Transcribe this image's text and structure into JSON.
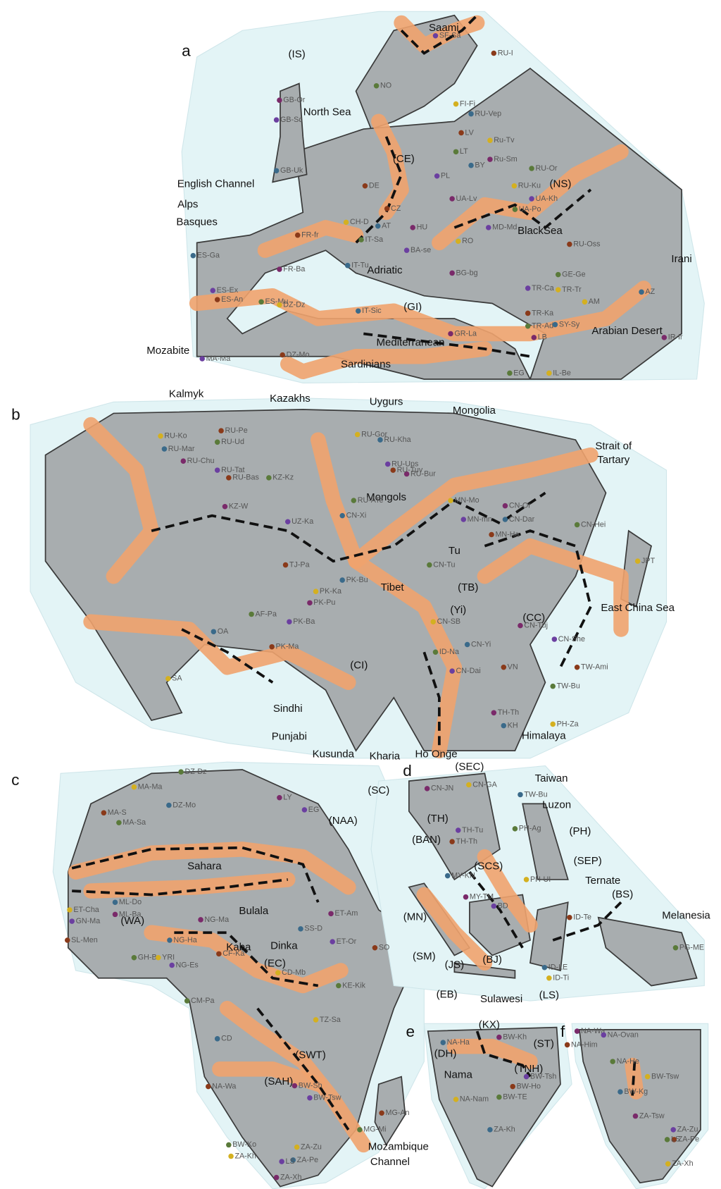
{
  "panels": [
    {
      "letter": "a",
      "regions": [
        "(IS)",
        "Saami",
        "North Sea",
        "(CE)",
        "English Channel",
        "Alps",
        "Basques",
        "(NS)",
        "BlackSea",
        "Irani",
        "Adriatic",
        "(GI)",
        "Arabian Desert",
        "Mozabite",
        "Mediterranean",
        "Sardinians"
      ],
      "samples": [
        "SF-Sa",
        "RU-I",
        "NO",
        "FI-Fi",
        "RU-Vep",
        "GB-Or",
        "GB-Sc",
        "LV",
        "LT",
        "Ru-Tv",
        "BY",
        "Ru-Sm",
        "PL",
        "DE",
        "RU-Or",
        "RU-Ku",
        "GB-Uk",
        "UA-Lv",
        "UA-Kh",
        "CZ",
        "UA-Po",
        "CH-D",
        "AT",
        "HU",
        "MD-Md",
        "FR-fr",
        "IT-Sa",
        "RO",
        "ES-Ga",
        "FR-Ba",
        "BA-se",
        "RU-Oss",
        "GE-Ge",
        "TR-Tr",
        "IT-Tu",
        "BG-bg",
        "ES-Ex",
        "ES-An",
        "ES-Mu",
        "DZ-Dz",
        "IT-Sic",
        "GR-La",
        "TR-Ca",
        "TR-Ka",
        "TR-Ad",
        "AM",
        "AZ",
        "IR-Ir",
        "MA-Ma",
        "DZ-Mo",
        "EG",
        "IL-Be",
        "SY-Sy",
        "LB"
      ]
    },
    {
      "letter": "b",
      "regions": [
        "Kalmyk",
        "Kazakhs",
        "Uygurs",
        "Mongolia",
        "Strait of",
        "Tartary",
        "Mongols",
        "Tu",
        "Tibet",
        "(TB)",
        "(Yi)",
        "(CC)",
        "East China Sea",
        "(CI)",
        "Sindhi",
        "Punjabi",
        "Kusunda",
        "Kharia",
        "Ho Onge",
        "Himalaya"
      ],
      "samples": [
        "RU-Pe",
        "RU-Ud",
        "RU-Ko",
        "RU-Mar",
        "RU-Chu",
        "RU-Tat",
        "RU-Bas",
        "KZ-Kz",
        "RU-Gor",
        "RU-Kha",
        "RU-Bur",
        "RU-Ups",
        "RU-Tuv",
        "RU-ATe",
        "MN-Mo",
        "CN-Dar",
        "CN-Or",
        "MN-mn",
        "MN-Ha",
        "CN-Hei",
        "JPT",
        "CN-Xi",
        "KZ-W",
        "UZ-Ka",
        "TJ-Pa",
        "AF-Pa",
        "PK-Ka",
        "PK-Bu",
        "PK-Pu",
        "PK-Ba",
        "PK-Ma",
        "CN-Tu",
        "CN-SB",
        "CN-Yi",
        "CN-Tuj",
        "CN-She",
        "TW-Ami",
        "TW-Bu",
        "PH-Za",
        "KH",
        "TH-Th",
        "CN-Dai",
        "VN",
        "ID-Na",
        "SA",
        "OA"
      ]
    },
    {
      "letter": "c",
      "regions": [
        "(NAA)",
        "Sahara",
        "(WA)",
        "Bulala",
        "Kaba",
        "Dinka",
        "(EC)",
        "(SWT)",
        "(SAH)",
        "Mozambique",
        "Channel"
      ],
      "samples": [
        "DZ-Dz",
        "MA-Ma",
        "DZ-Mo",
        "LY",
        "EG",
        "MA-S",
        "MA-Sa",
        "ET-Cha",
        "ML-Do",
        "ML-Ba",
        "GN-Ma",
        "SL-Men",
        "GH-Br",
        "YRI",
        "NG-Ha",
        "NG-Ma",
        "NG-Es",
        "CF-Ka",
        "CM-Pa",
        "CD-Mb",
        "SS-D",
        "ET-Am",
        "ET-Or",
        "SO",
        "KE-Kik",
        "TZ-Sa",
        "CD",
        "BW-Sh",
        "BW-Tsw",
        "MG-An",
        "MG-Mi",
        "ZA-Zu",
        "ZA-Pe",
        "ZA-Xh",
        "LS",
        "NA-Wa",
        "BW-Ko",
        "ZA-Kh"
      ]
    },
    {
      "letter": "d",
      "regions": [
        "(SEC)",
        "Taiwan",
        "(SC)",
        "(TH)",
        "Luzon",
        "(BAN)",
        "(PH)",
        "(SCS)",
        "(SEP)",
        "Ternate",
        "(BS)",
        "Melanesia",
        "(MN)",
        "(SM)",
        "(JS)",
        "(BJ)",
        "(EB)",
        "Sulawesi",
        "(LS)"
      ],
      "samples": [
        "CN-GA",
        "TW-Bu",
        "CN-JN",
        "TH-Tu",
        "TH-Th",
        "PH-Ag",
        "PH-UI",
        "MY-KN",
        "MY-TM",
        "BD",
        "ID-Te",
        "PG-ME",
        "ID-Ti",
        "ID-LE"
      ]
    },
    {
      "letter": "e",
      "regions": [
        "(KX)",
        "(ST)",
        "(DH)",
        "(TNH)",
        "Nama"
      ],
      "samples": [
        "NA-Ha",
        "BW-Kh",
        "BW-Tsh",
        "BW-Ho",
        "BW-TE",
        "NA-Nam",
        "ZA-Kh"
      ]
    },
    {
      "letter": "f",
      "regions": [],
      "samples": [
        "NA-Wa",
        "NA-Ovan",
        "NA-Him",
        "NA-He",
        "BW-Tsw",
        "BW-Kg",
        "ZA-Tsw",
        "ZA-Zu",
        "ZA-Pe",
        "LS",
        "ZA-Xh"
      ]
    }
  ]
}
